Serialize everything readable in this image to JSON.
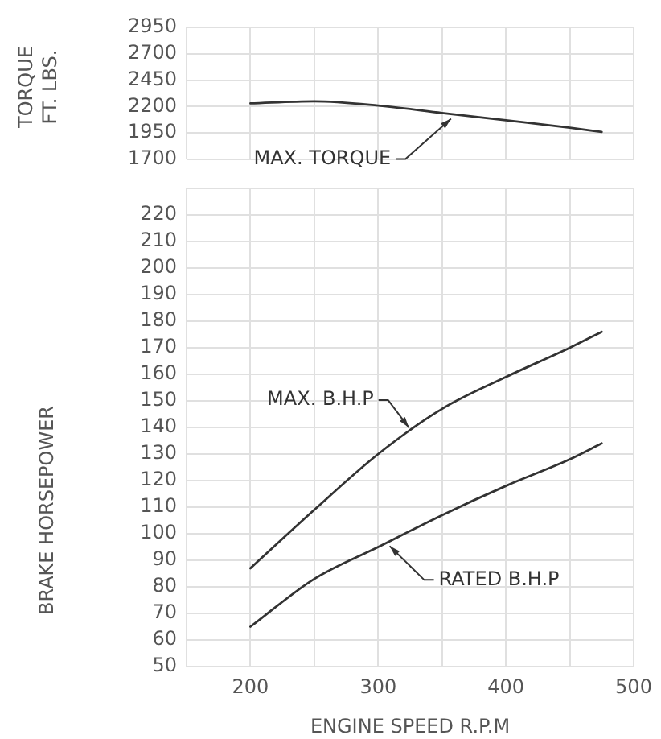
{
  "chart_data": [
    {
      "type": "line",
      "ylabel": "TORQUE\nFT. LBS.",
      "x": [
        200,
        250,
        300,
        350,
        400,
        450,
        475
      ],
      "series": [
        {
          "name": "MAX. TORQUE",
          "color": "#333333",
          "values": [
            2230,
            2250,
            2210,
            2140,
            2070,
            2000,
            1960
          ]
        }
      ],
      "xlim": [
        150,
        500
      ],
      "xticks": [
        {
          "value": 150,
          "label": null
        },
        200,
        {
          "value": 250,
          "label": null
        },
        300,
        {
          "value": 350,
          "label": null
        },
        400,
        {
          "value": 450,
          "label": null
        },
        500
      ],
      "ylim": [
        1700,
        2950
      ],
      "yticks": [
        1700,
        1950,
        2200,
        2450,
        2700,
        2950
      ],
      "grid": true,
      "legend": false,
      "marker": "none",
      "tick_labels": "y"
    },
    {
      "type": "line",
      "xlabel": "ENGINE SPEED R.P.M",
      "ylabel": "BRAKE HORSEPOWER",
      "x": [
        200,
        250,
        300,
        350,
        400,
        450,
        475
      ],
      "series": [
        {
          "name": "MAX. B.H.P",
          "color": "#333333",
          "values": [
            87,
            109,
            130,
            147,
            159,
            170,
            176
          ]
        },
        {
          "name": "RATED B.H.P",
          "color": "#333333",
          "values": [
            65,
            83,
            95,
            107,
            118,
            128,
            134
          ]
        }
      ],
      "xlim": [
        150,
        500
      ],
      "xticks": [
        {
          "value": 150,
          "label": null
        },
        200,
        {
          "value": 250,
          "label": null
        },
        300,
        {
          "value": 350,
          "label": null
        },
        400,
        {
          "value": 450,
          "label": null
        },
        500
      ],
      "ylim": [
        50,
        230
      ],
      "yticks": [
        50,
        60,
        70,
        80,
        90,
        100,
        110,
        120,
        130,
        140,
        150,
        160,
        170,
        180,
        190,
        200,
        210,
        220,
        {
          "value": 230,
          "label": null
        }
      ],
      "grid": true,
      "legend": false,
      "marker": "none"
    }
  ]
}
